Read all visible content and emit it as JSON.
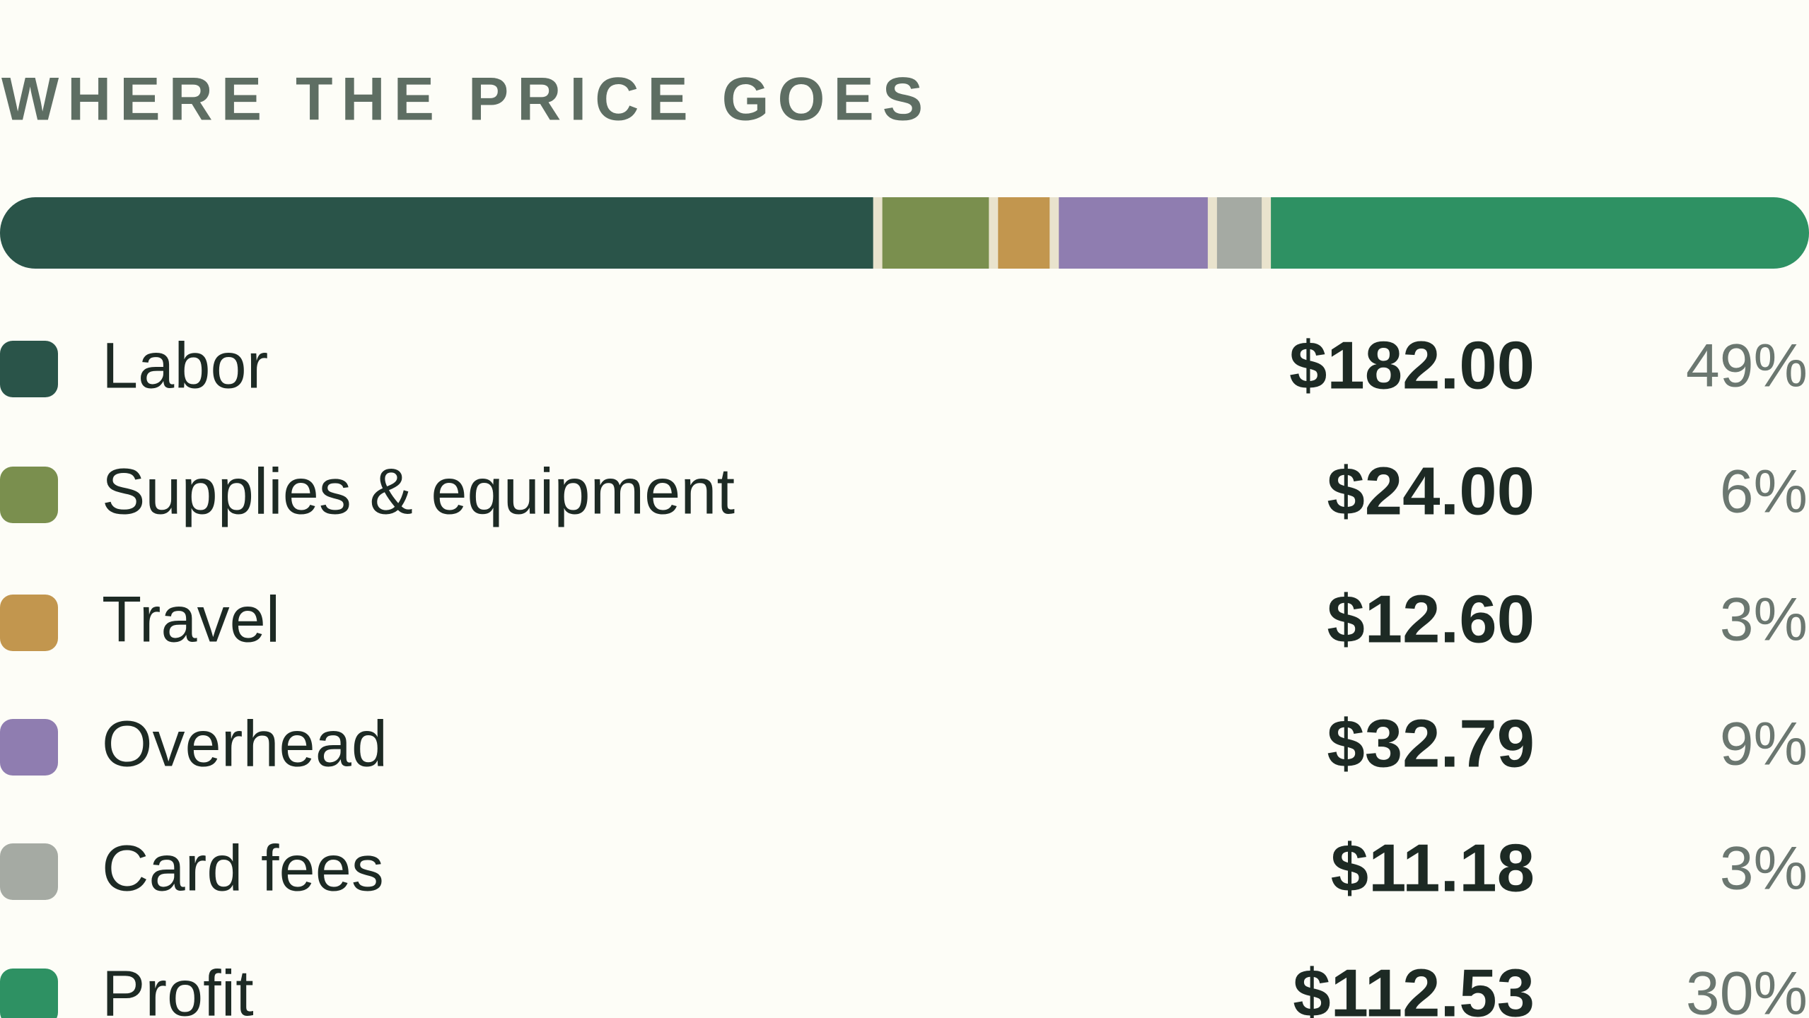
{
  "chart_data": {
    "type": "stacked-bar",
    "title": "WHERE THE PRICE GOES",
    "categories": [
      "Labor",
      "Supplies & equipment",
      "Travel",
      "Overhead",
      "Card fees",
      "Profit"
    ],
    "values": [
      182.0,
      24.0,
      12.6,
      32.79,
      11.18,
      112.53
    ],
    "value_labels": [
      "$182.00",
      "$24.00",
      "$12.60",
      "$32.79",
      "$11.18",
      "$112.53"
    ],
    "shares": [
      "49%",
      "6%",
      "3%",
      "9%",
      "3%",
      "30%"
    ],
    "colors": [
      "#2a5449",
      "#7a8f4e",
      "#c2964e",
      "#8f7db0",
      "#a5aaa3",
      "#2e9163"
    ]
  }
}
